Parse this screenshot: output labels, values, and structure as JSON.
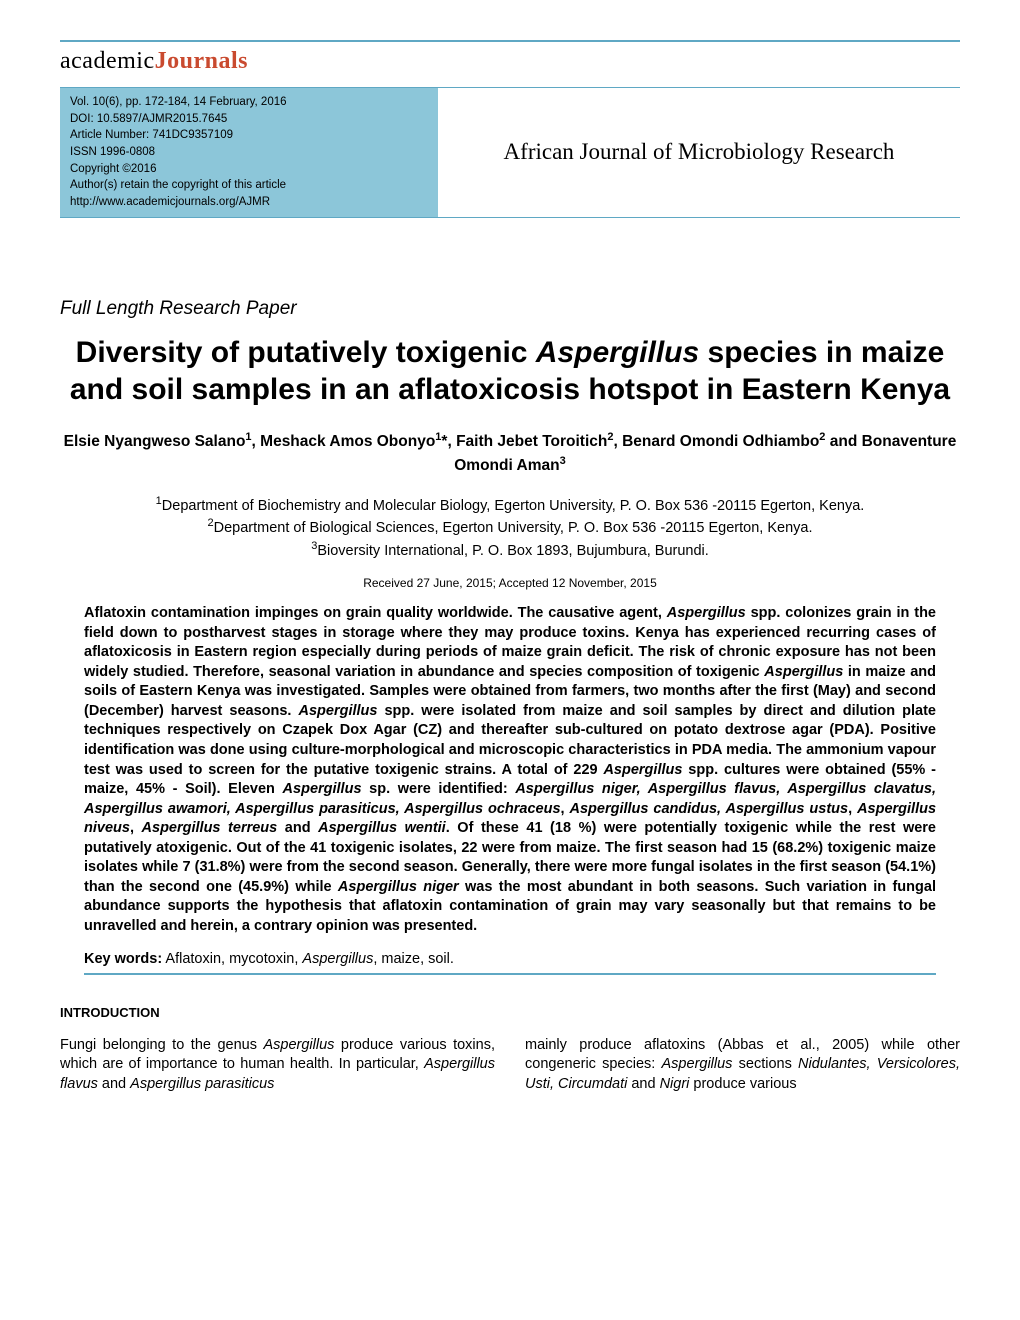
{
  "logo": {
    "part1": "academic",
    "part2": "Journals"
  },
  "header": {
    "vol_line": "Vol. 10(6), pp. 172-184, 14 February, 2016",
    "doi_line": "DOI: 10.5897/AJMR2015.7645",
    "article_number": "Article Number: 741DC9357109",
    "issn": "ISSN 1996-0808",
    "copyright": "Copyright ©2016",
    "authors_retain": "Author(s) retain the copyright of this article",
    "url": "http://www.academicjournals.org/AJMR",
    "journal_name": "African Journal of Microbiology Research"
  },
  "paper_type": "Full Length Research Paper",
  "title_parts": {
    "p1": "Diversity of putatively toxigenic ",
    "p2_italic": "Aspergillus",
    "p3": " species in maize and soil samples in an aflatoxicosis hotspot in Eastern Kenya"
  },
  "authors": {
    "a1": "Elsie Nyangweso Salano",
    "s1": "1",
    "a2": ", Meshack Amos Obonyo",
    "s2": "1",
    "a3": "*, Faith Jebet Toroitich",
    "s3": "2",
    "a4": ", Benard Omondi Odhiambo",
    "s4": "2",
    "a5": " and Bonaventure Omondi Aman",
    "s5": "3"
  },
  "affiliations": {
    "l1": "Department of Biochemistry and Molecular Biology, Egerton University, P. O. Box 536 -20115 Egerton, Kenya.",
    "l2": "Department of Biological Sciences, Egerton University, P. O. Box 536 -20115 Egerton, Kenya.",
    "l3": "Bioversity International, P. O. Box 1893, Bujumbura, Burundi."
  },
  "dates": "Received 27 June, 2015; Accepted 12 November, 2015",
  "abstract": {
    "t1": "Aflatoxin contamination impinges on grain quality worldwide. The causative agent, ",
    "i1": "Aspergillus",
    "t2": " spp. colonizes grain in the field down to postharvest stages in storage where they may produce toxins. Kenya has experienced recurring cases of aflatoxicosis in Eastern region especially during periods of maize grain deficit. The risk of chronic exposure has not been widely studied. Therefore, seasonal variation in abundance and species composition of toxigenic ",
    "i2": "Aspergillus",
    "t3": " in maize and soils of Eastern Kenya was investigated. Samples were obtained from farmers, two months after the first (May) and second (December) harvest seasons. ",
    "i3": "Aspergillus",
    "t4": " spp. were isolated from maize and soil samples by direct and dilution plate techniques respectively on Czapek Dox Agar (CZ) and thereafter sub-cultured on potato dextrose agar (PDA). Positive identification was done using culture-morphological and microscopic characteristics in PDA media. The ammonium vapour test was used to screen for the putative toxigenic strains. A total of 229 ",
    "i4": "Aspergillus",
    "t5": " spp. cultures were obtained (55% -maize, 45% - Soil). Eleven ",
    "i5": "Aspergillus",
    "t6": " sp. were identified: ",
    "i6": "Aspergillus niger,  Aspergillus flavus, Aspergillus clavatus, Aspergillus awamori, Aspergillus parasiticus, Aspergillus ochraceus",
    "t7": ", ",
    "i7": "Aspergillus candidus, Aspergillus ustus",
    "t8": ", ",
    "i8": "Aspergillus niveus",
    "t9": ", ",
    "i9": "Aspergillus terreus",
    "t10": " and ",
    "i10": "Aspergillus wentii",
    "t11": ". Of these 41 (18 %) were potentially toxigenic while the rest were putatively atoxigenic. Out of the 41 toxigenic isolates, 22 were from maize. The first season had 15 (68.2%) toxigenic maize isolates while 7 (31.8%) were from the second season. Generally, there were more fungal isolates in the first season (54.1%) than the second one (45.9%) while ",
    "i11": "Aspergillus niger",
    "t12": " was the most abundant in both seasons. Such variation in fungal abundance supports the hypothesis that aflatoxin contamination of grain may vary seasonally but that remains to be unravelled and herein, a contrary opinion was presented."
  },
  "keywords": {
    "label": "Key words:",
    "t1": " Aflatoxin, mycotoxin, ",
    "i1": "Aspergillus",
    "t2": ", maize, soil."
  },
  "intro_heading": "INTRODUCTION",
  "col1": {
    "t1": "Fungi belonging to the genus ",
    "i1": "Aspergillus",
    "t2": " produce various toxins, which are of importance to human health. In particular, ",
    "i2": "Aspergillus flavus ",
    "t3": " and ",
    "i3": " Aspergillus parasiticus"
  },
  "col2": {
    "t1": "mainly produce aflatoxins (Abbas et al., 2005) while other congeneric species: ",
    "i1": "Aspergillus",
    "t2": " sections ",
    "i2": "Nidulantes, Versicolores, Usti, Circumdati",
    "t3": " and ",
    "i3": "Nigri",
    "t4": "  produce  various"
  },
  "colors": {
    "rule": "#5fa8c4",
    "header_bg": "#8cc6d9",
    "logo_red": "#c94a2f",
    "text": "#000000",
    "background": "#ffffff"
  }
}
